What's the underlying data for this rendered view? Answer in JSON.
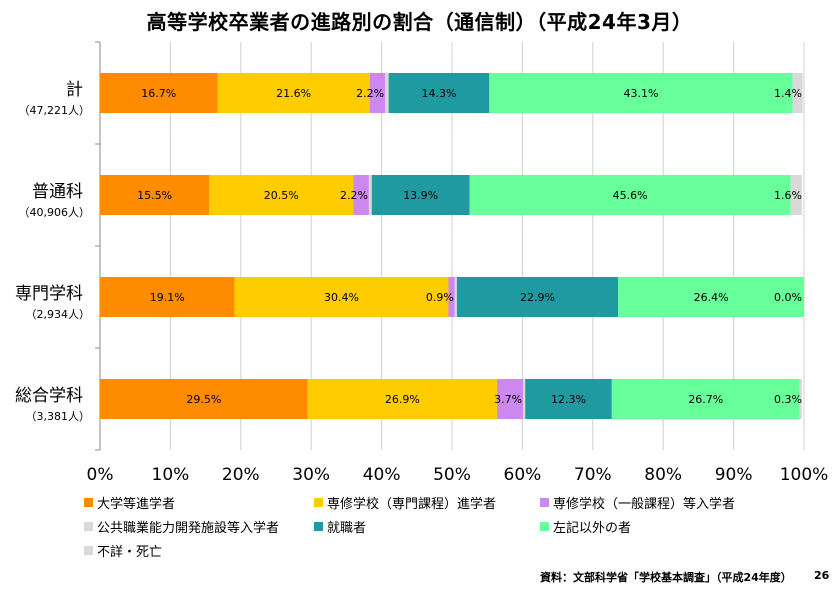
{
  "title": "高等学校卒業者の進路別の割合（通信制）（平成24年3月）",
  "source": "資料：文部科学省「学校基本調査」（平成24年度）",
  "page_number": "26",
  "colors": {
    "univ": "#FF8C00",
    "senshu_senmon": "#FFCC00",
    "senshu_ippan": "#CC88EE",
    "koukyou": "#D9D9D9",
    "shushoku": "#1E9AA0",
    "other": "#66FF99",
    "fusho": "#D9D9D9"
  },
  "chart_data": {
    "type": "bar",
    "orientation": "horizontal",
    "stacked": "percent",
    "xlim": [
      0,
      100
    ],
    "x_ticks": [
      "0%",
      "10%",
      "20%",
      "30%",
      "40%",
      "50%",
      "60%",
      "70%",
      "80%",
      "90%",
      "100%"
    ],
    "categories": [
      {
        "label": "計",
        "sub": "（47,221人）"
      },
      {
        "label": "普通科",
        "sub": "（40,906人）"
      },
      {
        "label": "専門学科",
        "sub": "（2,934人）"
      },
      {
        "label": "総合学科",
        "sub": "（3,381人）"
      }
    ],
    "series": [
      {
        "name": "大学等進学者",
        "color_key": "univ",
        "values": [
          16.7,
          15.5,
          19.1,
          29.5
        ],
        "labels": [
          "16.7%",
          "15.5%",
          "19.1%",
          "29.5%"
        ]
      },
      {
        "name": "専修学校（専門課程）進学者",
        "color_key": "senshu_senmon",
        "values": [
          21.6,
          20.5,
          30.4,
          26.9
        ],
        "labels": [
          "21.6%",
          "20.5%",
          "30.4%",
          "26.9%"
        ]
      },
      {
        "name": "専修学校（一般課程）等入学者",
        "color_key": "senshu_ippan",
        "values": [
          2.2,
          2.2,
          0.9,
          3.7
        ],
        "labels": [
          "2.2%",
          "2.2%",
          "0.9%",
          "3.7%"
        ]
      },
      {
        "name": "公共職業能力開発施設等入学者",
        "color_key": "koukyou",
        "values": [
          0.5,
          0.4,
          0.3,
          0.3
        ],
        "labels": [
          "",
          "",
          "",
          ""
        ]
      },
      {
        "name": "就職者",
        "color_key": "shushoku",
        "values": [
          14.3,
          13.9,
          22.9,
          12.3
        ],
        "labels": [
          "14.3%",
          "13.9%",
          "22.9%",
          "12.3%"
        ]
      },
      {
        "name": "左記以外の者",
        "color_key": "other",
        "values": [
          43.1,
          45.6,
          26.4,
          26.7
        ],
        "labels": [
          "43.1%",
          "45.6%",
          "26.4%",
          "26.7%"
        ]
      },
      {
        "name": "不詳・死亡",
        "color_key": "fusho",
        "values": [
          1.4,
          1.6,
          0.0,
          0.3
        ],
        "labels": [
          "1.4%",
          "1.6%",
          "0.0%",
          "0.3%"
        ]
      }
    ]
  },
  "legend_order": [
    0,
    1,
    2,
    3,
    4,
    5,
    6
  ]
}
